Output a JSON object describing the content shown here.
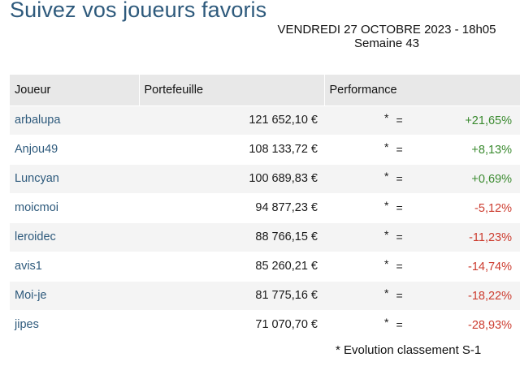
{
  "header": {
    "title": "Suivez vos joueurs favoris",
    "date": "VENDREDI 27 OCTOBRE 2023 - 18h05",
    "week": "Semaine 43"
  },
  "table": {
    "columns": [
      "Joueur",
      "Portefeuille",
      "Performance"
    ],
    "rows": [
      {
        "player": "arbalupa",
        "wallet": "121 652,10 €",
        "star": "*",
        "evolution": "=",
        "performance": "+21,65%",
        "trend": "positive"
      },
      {
        "player": "Anjou49",
        "wallet": "108 133,72 €",
        "star": "*",
        "evolution": "=",
        "performance": "+8,13%",
        "trend": "positive"
      },
      {
        "player": "Luncyan",
        "wallet": "100 689,83 €",
        "star": "*",
        "evolution": "=",
        "performance": "+0,69%",
        "trend": "positive"
      },
      {
        "player": "moicmoi",
        "wallet": "94 877,23 €",
        "star": "*",
        "evolution": "=",
        "performance": "-5,12%",
        "trend": "negative"
      },
      {
        "player": "leroidec",
        "wallet": "88 766,15 €",
        "star": "*",
        "evolution": "=",
        "performance": "-11,23%",
        "trend": "negative"
      },
      {
        "player": "avis1",
        "wallet": "85 260,21 €",
        "star": "*",
        "evolution": "=",
        "performance": "-14,74%",
        "trend": "negative"
      },
      {
        "player": "Moi-je",
        "wallet": "81 775,16 €",
        "star": "*",
        "evolution": "=",
        "performance": "-18,22%",
        "trend": "negative"
      },
      {
        "player": "jipes",
        "wallet": "71 070,70 €",
        "star": "*",
        "evolution": "=",
        "performance": "-28,93%",
        "trend": "negative"
      }
    ]
  },
  "footnote": "* Evolution classement S-1",
  "colors": {
    "title": "#2e5a7c",
    "player_link": "#2e5a7c",
    "positive": "#3a8a2f",
    "negative": "#cc3b2e",
    "header_bg": "#e8e8e8",
    "stripe_bg": "#f4f4f4"
  }
}
